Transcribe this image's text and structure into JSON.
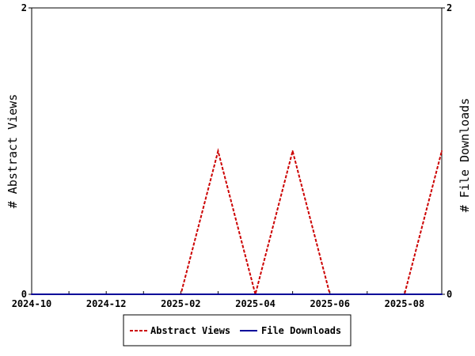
{
  "chart_data": {
    "type": "line",
    "title": "",
    "ylabel_left": "# Abstract Views",
    "ylabel_right": "# File Downloads",
    "x_tick_labels": [
      "2024-10",
      "2024-12",
      "2025-02",
      "2025-04",
      "2025-06",
      "2025-08"
    ],
    "y_left_ticks": [
      "0",
      "2"
    ],
    "y_right_ticks": [
      "0",
      "2"
    ],
    "xlim": [
      "2024-10",
      "2025-09"
    ],
    "ylim": [
      0,
      2
    ],
    "grid": false,
    "legend_position": "bottom-center",
    "x": [
      "2024-10",
      "2024-11",
      "2024-12",
      "2025-01",
      "2025-02",
      "2025-03",
      "2025-04",
      "2025-05",
      "2025-06",
      "2025-07",
      "2025-08",
      "2025-09"
    ],
    "series": [
      {
        "name": "Abstract Views",
        "color": "#cc0000",
        "style": "dashed",
        "axis": "left",
        "values": [
          0,
          0,
          0,
          0,
          0,
          1,
          0,
          1,
          0,
          0,
          0,
          1
        ]
      },
      {
        "name": "File Downloads",
        "color": "#000099",
        "style": "solid",
        "axis": "right",
        "values": [
          0,
          0,
          0,
          0,
          0,
          0,
          0,
          0,
          0,
          0,
          0,
          0
        ]
      }
    ]
  }
}
